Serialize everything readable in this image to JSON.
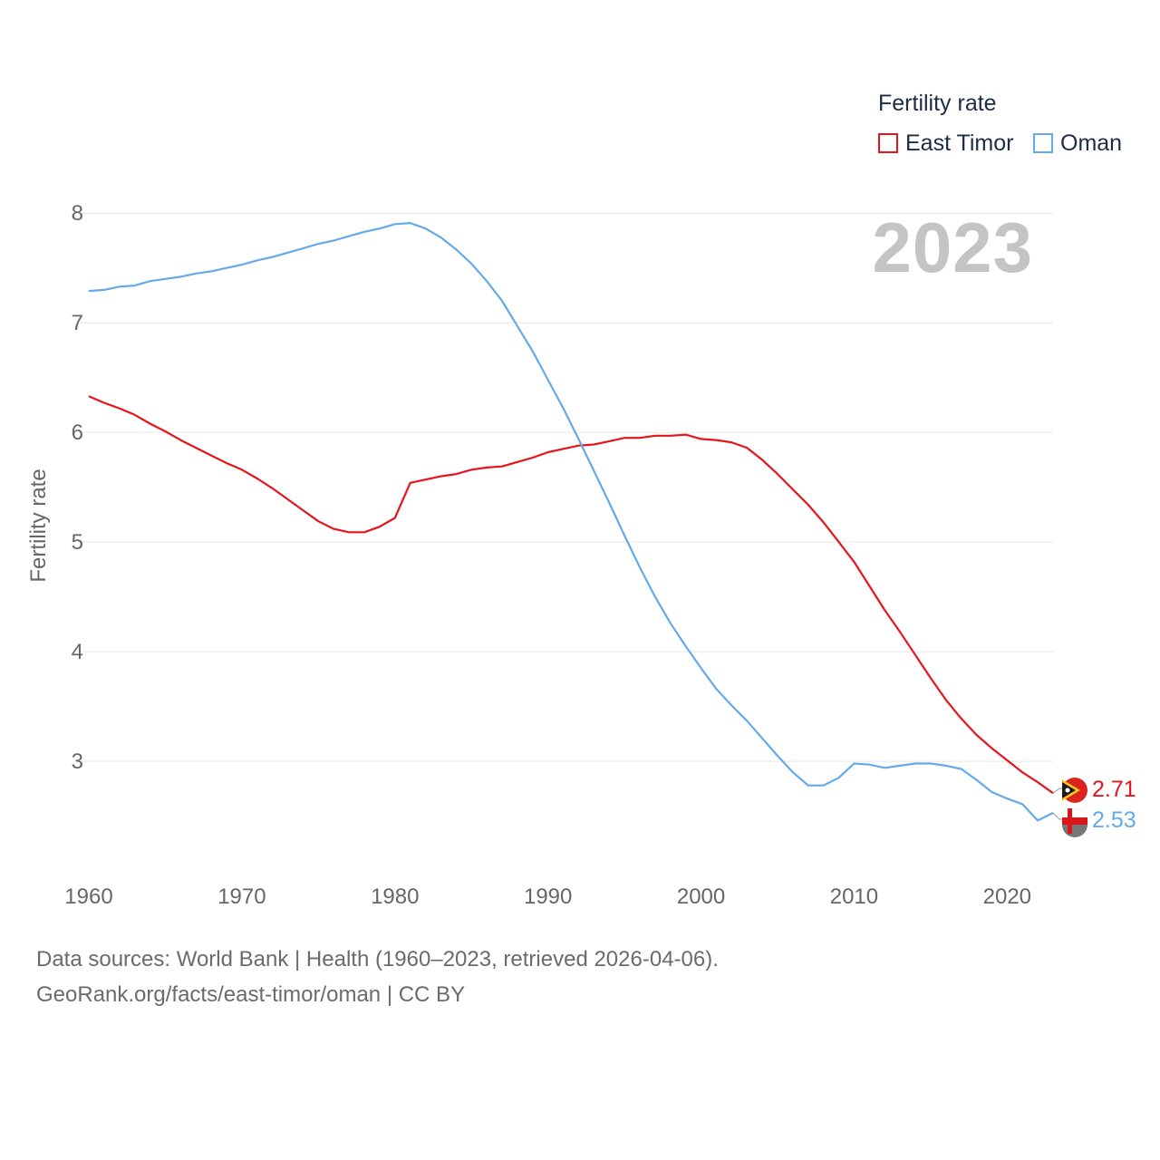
{
  "legend": {
    "title": "Fertility rate",
    "east_timor": "East Timor",
    "oman": "Oman"
  },
  "year_label": "2023",
  "footer": {
    "line1": "Data sources: World Bank | Health (1960–2023, retrieved 2026-04-06).",
    "line2": "GeoRank.org/facts/east-timor/oman | CC BY"
  },
  "colors": {
    "east_timor": "#e8141c",
    "oman": "#64aaea",
    "grid": "#e6e6e6",
    "axis_text": "#666666"
  },
  "chart_data": {
    "type": "line",
    "title": "Fertility rate",
    "xlabel": "",
    "ylabel": "Fertility rate",
    "xlim": [
      1960,
      2023
    ],
    "ylim": [
      2.05,
      8.25
    ],
    "x_ticks": [
      1960,
      1970,
      1980,
      1990,
      2000,
      2010,
      2020
    ],
    "y_ticks": [
      3,
      4,
      5,
      6,
      7,
      8
    ],
    "grid": true,
    "legend_position": "top-right",
    "x": [
      1960,
      1961,
      1962,
      1963,
      1964,
      1965,
      1966,
      1967,
      1968,
      1969,
      1970,
      1971,
      1972,
      1973,
      1974,
      1975,
      1976,
      1977,
      1978,
      1979,
      1980,
      1981,
      1982,
      1983,
      1984,
      1985,
      1986,
      1987,
      1988,
      1989,
      1990,
      1991,
      1992,
      1993,
      1994,
      1995,
      1996,
      1997,
      1998,
      1999,
      2000,
      2001,
      2002,
      2003,
      2004,
      2005,
      2006,
      2007,
      2008,
      2009,
      2010,
      2011,
      2012,
      2013,
      2014,
      2015,
      2016,
      2017,
      2018,
      2019,
      2020,
      2021,
      2022,
      2023
    ],
    "series": [
      {
        "name": "East Timor",
        "color": "#e8141c",
        "end_label": "2.71",
        "values": [
          6.33,
          6.27,
          6.22,
          6.16,
          6.08,
          6.01,
          5.93,
          5.86,
          5.79,
          5.72,
          5.66,
          5.58,
          5.49,
          5.39,
          5.29,
          5.19,
          5.12,
          5.09,
          5.09,
          5.14,
          5.22,
          5.54,
          5.57,
          5.6,
          5.62,
          5.66,
          5.68,
          5.69,
          5.73,
          5.77,
          5.82,
          5.85,
          5.88,
          5.89,
          5.92,
          5.95,
          5.95,
          5.97,
          5.97,
          5.98,
          5.94,
          5.93,
          5.91,
          5.86,
          5.75,
          5.62,
          5.48,
          5.34,
          5.18,
          5.0,
          4.82,
          4.6,
          4.38,
          4.18,
          3.97,
          3.76,
          3.56,
          3.39,
          3.24,
          3.12,
          3.01,
          2.9,
          2.81,
          2.71
        ]
      },
      {
        "name": "Oman",
        "color": "#64aaea",
        "end_label": "2.53",
        "values": [
          7.29,
          7.3,
          7.33,
          7.34,
          7.38,
          7.4,
          7.42,
          7.45,
          7.47,
          7.5,
          7.53,
          7.57,
          7.6,
          7.64,
          7.68,
          7.72,
          7.75,
          7.79,
          7.83,
          7.86,
          7.9,
          7.91,
          7.86,
          7.78,
          7.67,
          7.54,
          7.38,
          7.2,
          6.97,
          6.74,
          6.48,
          6.22,
          5.94,
          5.65,
          5.36,
          5.06,
          4.77,
          4.5,
          4.26,
          4.05,
          3.85,
          3.66,
          3.51,
          3.37,
          3.21,
          3.05,
          2.9,
          2.78,
          2.78,
          2.85,
          2.98,
          2.97,
          2.94,
          2.96,
          2.98,
          2.98,
          2.96,
          2.93,
          2.83,
          2.72,
          2.66,
          2.61,
          2.46,
          2.53
        ]
      }
    ]
  }
}
